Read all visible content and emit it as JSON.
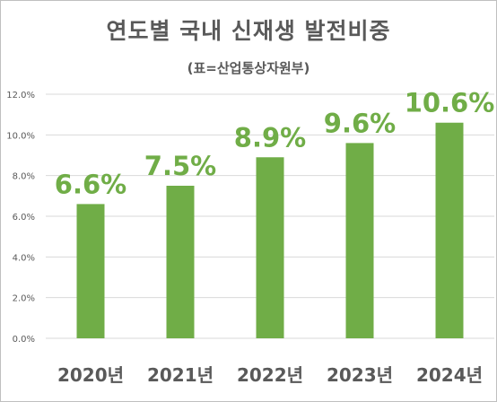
{
  "chart_data": {
    "type": "bar",
    "title": "연도별 국내 신재생 발전비중",
    "subtitle": "(표=산업통상자원부)",
    "categories": [
      "2020년",
      "2021년",
      "2022년",
      "2023년",
      "2024년"
    ],
    "values": [
      6.6,
      7.5,
      8.9,
      9.6,
      10.6
    ],
    "data_labels": [
      "6.6%",
      "7.5%",
      "8.9%",
      "9.6%",
      "10.6%"
    ],
    "ylim": [
      0,
      12
    ],
    "yticks": [
      0,
      2,
      4,
      6,
      8,
      10,
      12
    ],
    "ytick_labels": [
      "0.0%",
      "2.0%",
      "4.0%",
      "6.0%",
      "8.0%",
      "10.0%",
      "12.0%"
    ],
    "grid": true,
    "legend": "none",
    "bar_color": "#70ad47",
    "label_color": "#70ad47",
    "text_color": "#595959",
    "grid_color": "#d9d9d9"
  }
}
